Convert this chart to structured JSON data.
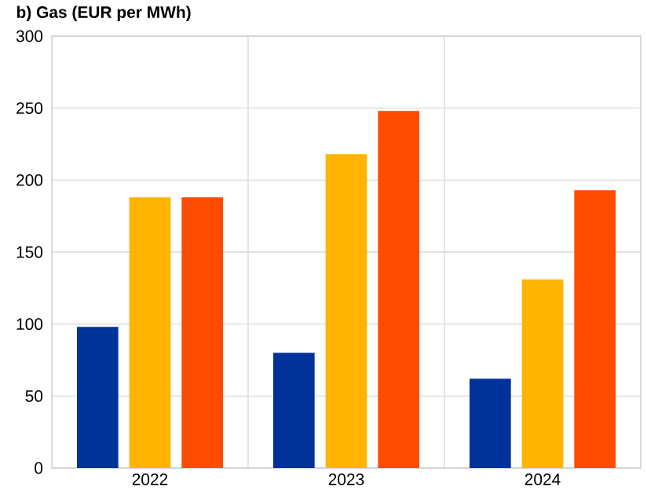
{
  "chart_data": {
    "type": "bar",
    "title": "b) Gas (EUR per MWh)",
    "categories": [
      "2022",
      "2023",
      "2024"
    ],
    "series": [
      {
        "color": "#003299",
        "values": [
          98,
          80,
          62
        ]
      },
      {
        "color": "#ffb400",
        "values": [
          188,
          218,
          131
        ]
      },
      {
        "color": "#ff4b00",
        "values": [
          188,
          248,
          193
        ]
      }
    ],
    "ylim": [
      0,
      300
    ],
    "yticks": [
      0,
      50,
      100,
      150,
      200,
      250,
      300
    ],
    "grid": true
  }
}
